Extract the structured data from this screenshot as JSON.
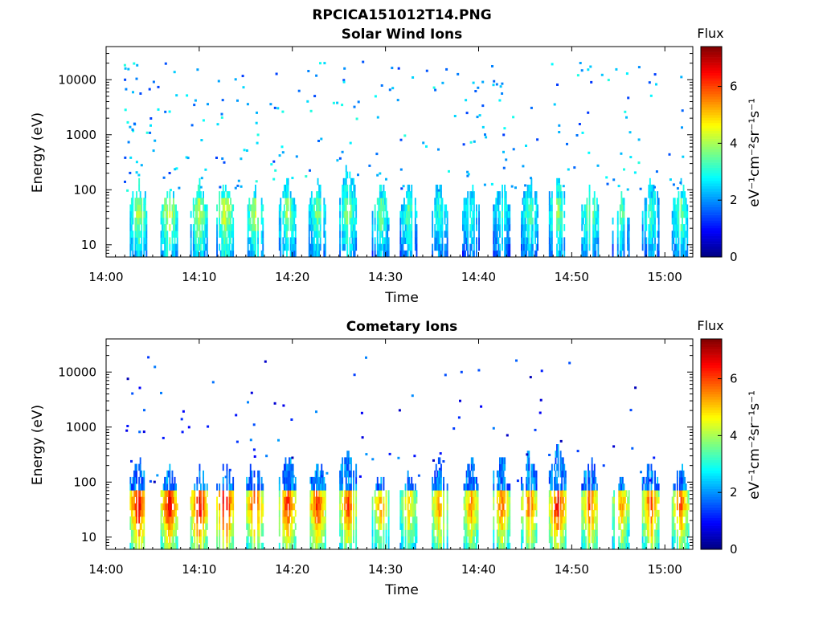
{
  "figure": {
    "title": "RPCICA151012T14.PNG"
  },
  "colormap": [
    "#00007f",
    "#0000ff",
    "#007fff",
    "#00ffff",
    "#7fff7f",
    "#ffff00",
    "#ff7f00",
    "#ff0000",
    "#7f0000"
  ],
  "chart_data": [
    {
      "type": "heatmap",
      "title": "Solar Wind Ions",
      "xlabel": "Time",
      "ylabel": "Energy (eV)",
      "x_ticks": [
        "14:00",
        "14:10",
        "14:20",
        "14:30",
        "14:40",
        "14:50",
        "15:00"
      ],
      "x_range_minutes": [
        0,
        63
      ],
      "y_scale": "log",
      "y_range": [
        6,
        40000
      ],
      "y_ticks": [
        10,
        100,
        1000,
        10000
      ],
      "y_tick_labels": [
        "10",
        "100",
        "1000",
        "10000"
      ],
      "colorbar": {
        "title": "Flux",
        "label": "eV⁻¹cm⁻²sr⁻¹s⁻¹",
        "range": [
          0,
          7.4
        ],
        "ticks": [
          0,
          2,
          4,
          6
        ],
        "tick_labels": [
          "0",
          "2",
          "4",
          "6"
        ]
      },
      "bursts": [
        {
          "t": 3.5,
          "energy_max": 150,
          "peak_flux": 4.2
        },
        {
          "t": 6.8,
          "energy_max": 120,
          "peak_flux": 4.5
        },
        {
          "t": 10.0,
          "energy_max": 130,
          "peak_flux": 4.3
        },
        {
          "t": 12.8,
          "energy_max": 140,
          "peak_flux": 4.6
        },
        {
          "t": 16.0,
          "energy_max": 120,
          "peak_flux": 4.2
        },
        {
          "t": 19.5,
          "energy_max": 140,
          "peak_flux": 4.0
        },
        {
          "t": 22.7,
          "energy_max": 130,
          "peak_flux": 3.8
        },
        {
          "t": 26.0,
          "energy_max": 260,
          "peak_flux": 4.0
        },
        {
          "t": 29.5,
          "energy_max": 120,
          "peak_flux": 3.8
        },
        {
          "t": 32.5,
          "energy_max": 120,
          "peak_flux": 3.5
        },
        {
          "t": 35.8,
          "energy_max": 130,
          "peak_flux": 3.2
        },
        {
          "t": 39.2,
          "energy_max": 130,
          "peak_flux": 3.2
        },
        {
          "t": 42.5,
          "energy_max": 140,
          "peak_flux": 3.3
        },
        {
          "t": 45.5,
          "energy_max": 160,
          "peak_flux": 3.5
        },
        {
          "t": 48.5,
          "energy_max": 180,
          "peak_flux": 4.0
        },
        {
          "t": 52.0,
          "energy_max": 130,
          "peak_flux": 4.0
        },
        {
          "t": 55.3,
          "energy_max": 100,
          "peak_flux": 3.5
        },
        {
          "t": 58.5,
          "energy_max": 150,
          "peak_flux": 3.5
        },
        {
          "t": 61.7,
          "energy_max": 130,
          "peak_flux": 3.8
        }
      ],
      "scatter_flux": 2.2
    },
    {
      "type": "heatmap",
      "title": "Cometary Ions",
      "xlabel": "Time",
      "ylabel": "Energy (eV)",
      "x_ticks": [
        "14:00",
        "14:10",
        "14:20",
        "14:30",
        "14:40",
        "14:50",
        "15:00"
      ],
      "x_range_minutes": [
        0,
        63
      ],
      "y_scale": "log",
      "y_range": [
        6,
        40000
      ],
      "y_ticks": [
        10,
        100,
        1000,
        10000
      ],
      "y_tick_labels": [
        "10",
        "100",
        "1000",
        "10000"
      ],
      "colorbar": {
        "title": "Flux",
        "label": "eV⁻¹cm⁻²sr⁻¹s⁻¹",
        "range": [
          0,
          7.4
        ],
        "ticks": [
          0,
          2,
          4,
          6
        ],
        "tick_labels": [
          "0",
          "2",
          "4",
          "6"
        ]
      },
      "bursts": [
        {
          "t": 3.5,
          "energy_max": 250,
          "peak_flux": 7.0
        },
        {
          "t": 6.8,
          "energy_max": 200,
          "peak_flux": 6.8
        },
        {
          "t": 10.0,
          "energy_max": 200,
          "peak_flux": 7.0
        },
        {
          "t": 12.8,
          "energy_max": 250,
          "peak_flux": 7.2
        },
        {
          "t": 16.0,
          "energy_max": 250,
          "peak_flux": 6.5
        },
        {
          "t": 19.5,
          "energy_max": 300,
          "peak_flux": 6.6
        },
        {
          "t": 22.7,
          "energy_max": 250,
          "peak_flux": 6.5
        },
        {
          "t": 26.0,
          "energy_max": 400,
          "peak_flux": 6.2
        },
        {
          "t": 29.5,
          "energy_max": 150,
          "peak_flux": 5.5
        },
        {
          "t": 32.5,
          "energy_max": 150,
          "peak_flux": 5.2
        },
        {
          "t": 35.8,
          "energy_max": 250,
          "peak_flux": 5.8
        },
        {
          "t": 39.2,
          "energy_max": 250,
          "peak_flux": 5.8
        },
        {
          "t": 42.5,
          "energy_max": 300,
          "peak_flux": 6.0
        },
        {
          "t": 45.5,
          "energy_max": 400,
          "peak_flux": 6.0
        },
        {
          "t": 48.5,
          "energy_max": 450,
          "peak_flux": 6.8
        },
        {
          "t": 52.0,
          "energy_max": 250,
          "peak_flux": 6.2
        },
        {
          "t": 55.3,
          "energy_max": 150,
          "peak_flux": 5.6
        },
        {
          "t": 58.5,
          "energy_max": 250,
          "peak_flux": 6.2
        },
        {
          "t": 61.7,
          "energy_max": 200,
          "peak_flux": 6.0
        }
      ],
      "scatter_flux": 1.2
    }
  ]
}
